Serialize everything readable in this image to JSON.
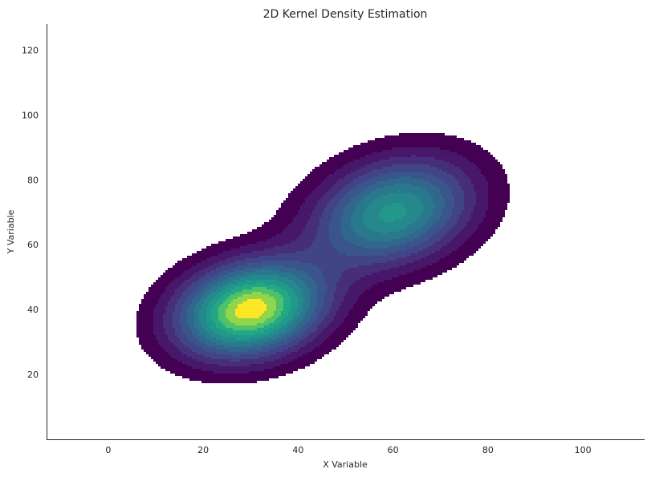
{
  "chart_data": {
    "type": "kde2d",
    "title": "2D Kernel Density Estimation",
    "xlabel": "X Variable",
    "ylabel": "Y Variable",
    "xlim": [
      -13,
      113
    ],
    "ylim": [
      0,
      128
    ],
    "x_ticks": [
      0,
      20,
      40,
      60,
      80,
      100
    ],
    "y_ticks": [
      20,
      40,
      60,
      80,
      100,
      120
    ],
    "grid": false,
    "colormap": "viridis",
    "fill": true,
    "clusters": [
      {
        "center_x": 30,
        "center_y": 40,
        "spread_x": 10.5,
        "spread_y": 10,
        "correlation": 0.2,
        "weight": 1.0
      },
      {
        "center_x": 60,
        "center_y": 70,
        "spread_x": 11.5,
        "spread_y": 11.5,
        "correlation": 0.25,
        "weight": 0.68
      }
    ]
  }
}
